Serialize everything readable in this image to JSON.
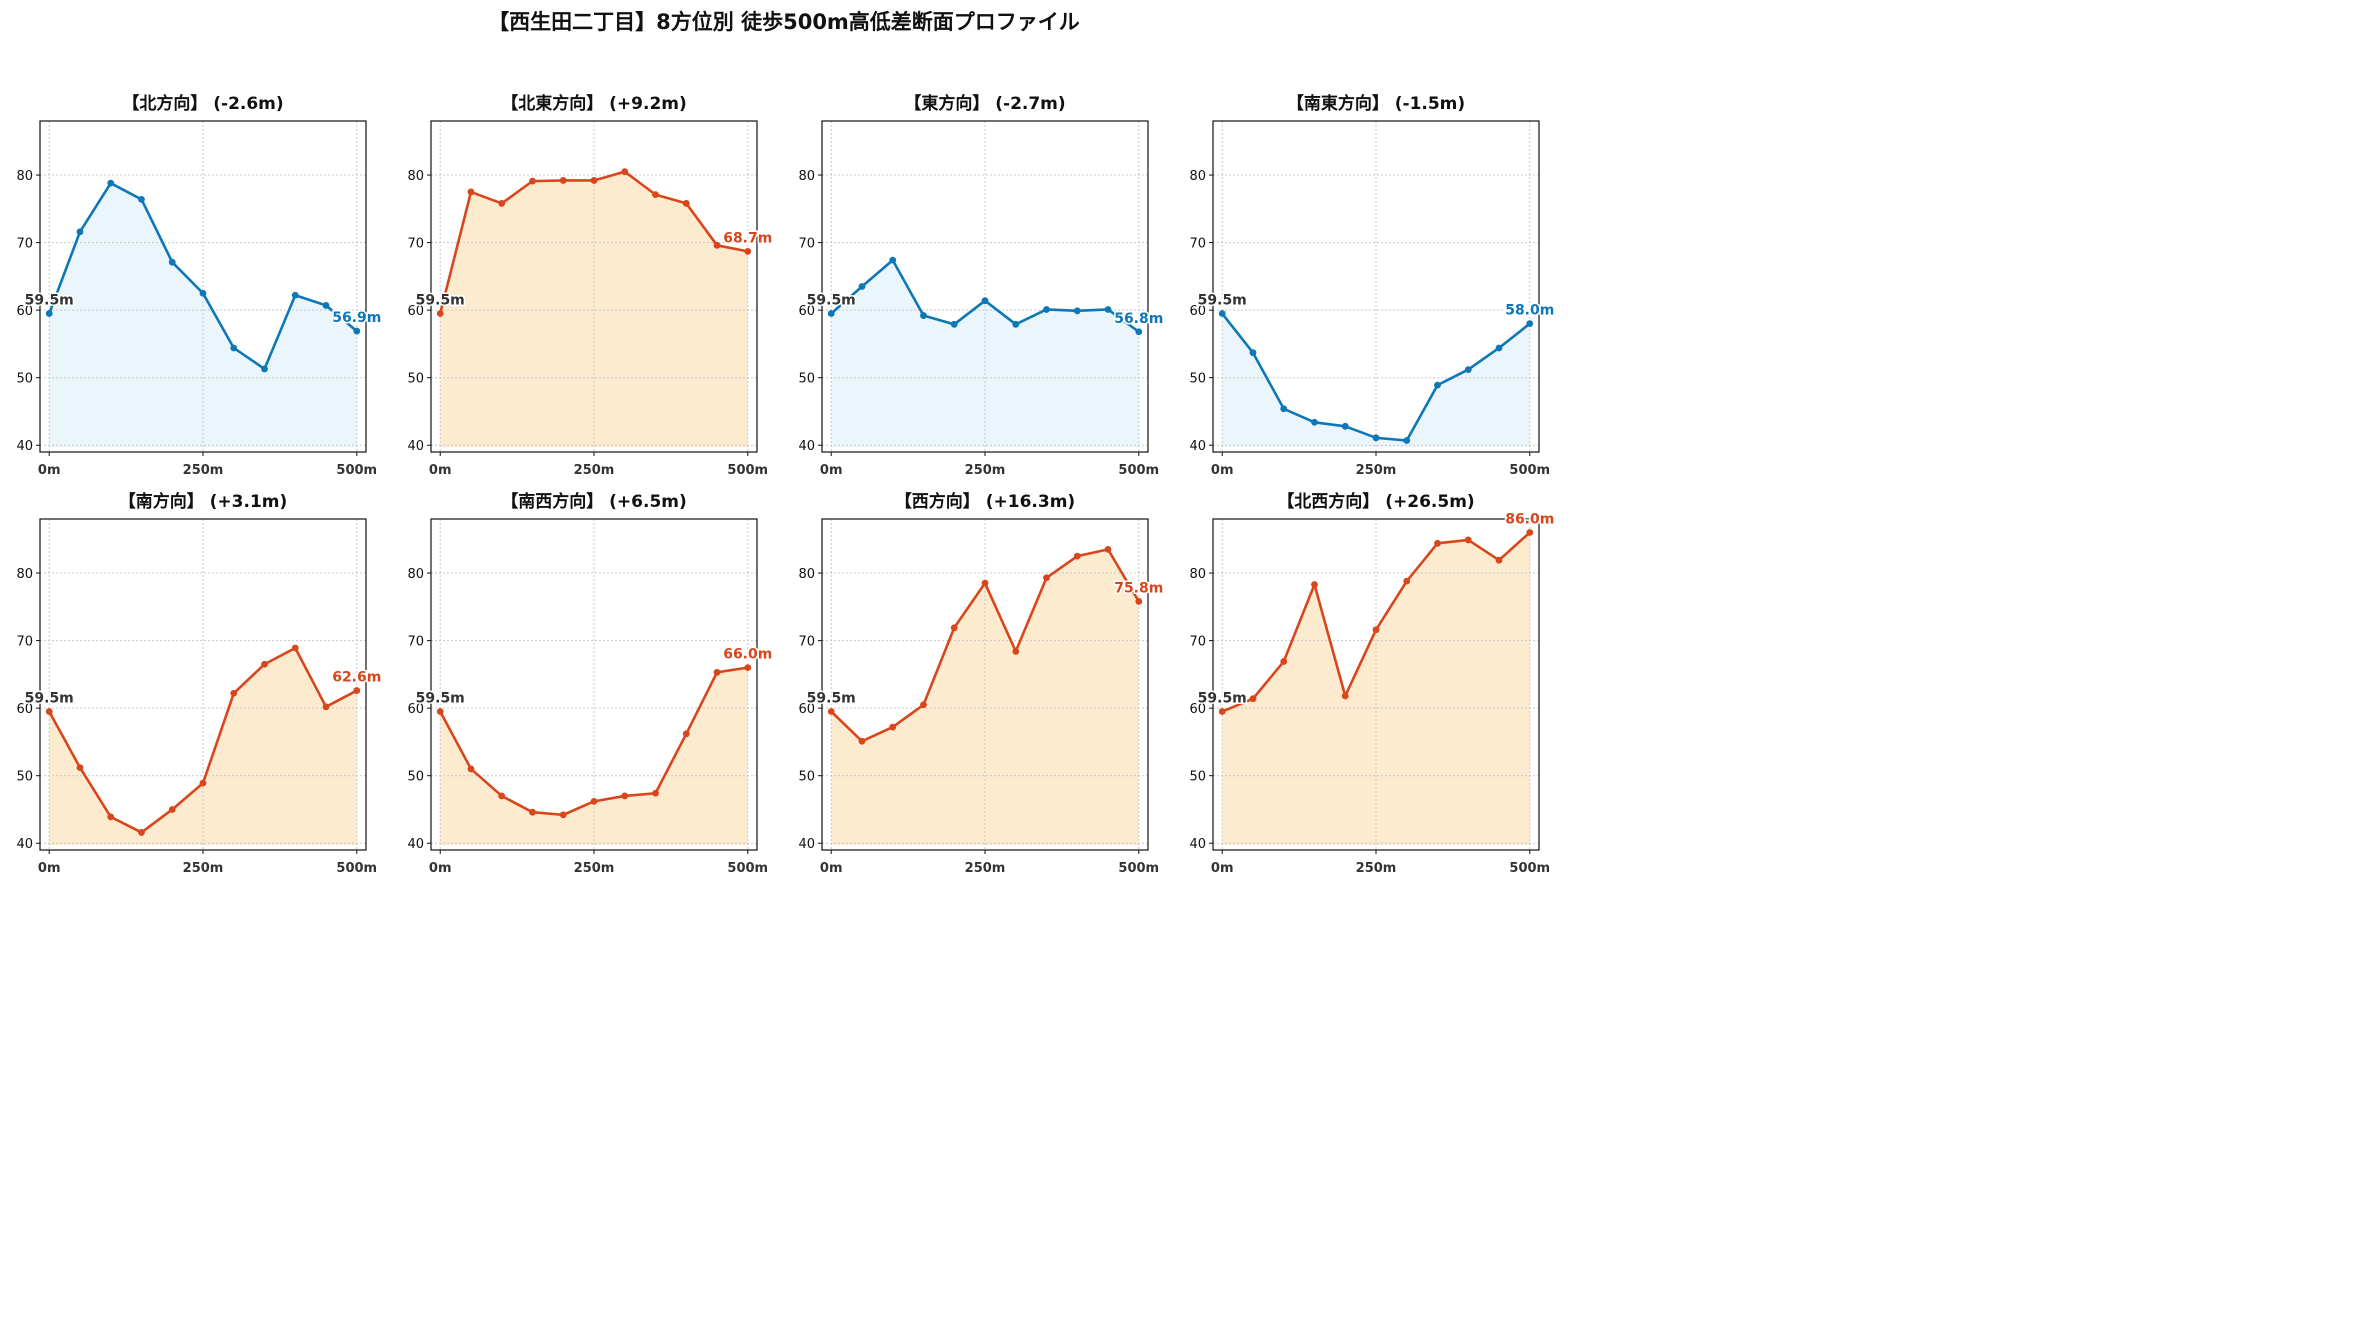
{
  "suptitle": "【西生田二丁目】8方位別 徒歩500m高低差断面プロファイル",
  "colors": {
    "down": "#0e77b7",
    "down_fill": "#eaf6fb",
    "up": "#d9461b",
    "up_fill": "#fdebd0",
    "start_label": "#333333",
    "grid": "#c8c8c8"
  },
  "chart_data": [
    {
      "type": "line",
      "title": "【北方向】 (-2.6m)",
      "trend": "down",
      "x": [
        0,
        50,
        100,
        150,
        200,
        250,
        300,
        350,
        400,
        450,
        500
      ],
      "y": [
        59.5,
        71.6,
        78.8,
        76.4,
        67.1,
        62.5,
        54.4,
        51.3,
        62.2,
        60.7,
        56.9
      ],
      "start_label": "59.5m",
      "end_label": "56.9m",
      "xticks": [
        "0m",
        "250m",
        "500m"
      ],
      "yticks": [
        40,
        50,
        60,
        70,
        80
      ],
      "ylim": [
        39,
        88
      ],
      "xlim": [
        -15,
        515
      ],
      "grid": true
    },
    {
      "type": "line",
      "title": "【北東方向】 (+9.2m)",
      "trend": "up",
      "x": [
        0,
        50,
        100,
        150,
        200,
        250,
        300,
        350,
        400,
        450,
        500
      ],
      "y": [
        59.5,
        77.5,
        75.8,
        79.1,
        79.2,
        79.2,
        80.5,
        77.1,
        75.8,
        69.6,
        68.7
      ],
      "start_label": "59.5m",
      "end_label": "68.7m",
      "xticks": [
        "0m",
        "250m",
        "500m"
      ],
      "yticks": [
        40,
        50,
        60,
        70,
        80
      ],
      "ylim": [
        39,
        88
      ],
      "xlim": [
        -15,
        515
      ],
      "grid": true
    },
    {
      "type": "line",
      "title": "【東方向】 (-2.7m)",
      "trend": "down",
      "x": [
        0,
        50,
        100,
        150,
        200,
        250,
        300,
        350,
        400,
        450,
        500
      ],
      "y": [
        59.5,
        63.5,
        67.4,
        59.2,
        57.9,
        61.4,
        57.9,
        60.1,
        59.9,
        60.1,
        56.8
      ],
      "start_label": "59.5m",
      "end_label": "56.8m",
      "xticks": [
        "0m",
        "250m",
        "500m"
      ],
      "yticks": [
        40,
        50,
        60,
        70,
        80
      ],
      "ylim": [
        39,
        88
      ],
      "xlim": [
        -15,
        515
      ],
      "grid": true
    },
    {
      "type": "line",
      "title": "【南東方向】 (-1.5m)",
      "trend": "down",
      "x": [
        0,
        50,
        100,
        150,
        200,
        250,
        300,
        350,
        400,
        450,
        500
      ],
      "y": [
        59.5,
        53.7,
        45.4,
        43.4,
        42.8,
        41.1,
        40.7,
        48.9,
        51.2,
        54.4,
        58.0
      ],
      "start_label": "59.5m",
      "end_label": "58.0m",
      "xticks": [
        "0m",
        "250m",
        "500m"
      ],
      "yticks": [
        40,
        50,
        60,
        70,
        80
      ],
      "ylim": [
        39,
        88
      ],
      "xlim": [
        -15,
        515
      ],
      "grid": true
    },
    {
      "type": "line",
      "title": "【南方向】 (+3.1m)",
      "trend": "up",
      "x": [
        0,
        50,
        100,
        150,
        200,
        250,
        300,
        350,
        400,
        450,
        500
      ],
      "y": [
        59.5,
        51.2,
        43.9,
        41.6,
        45.0,
        48.9,
        62.2,
        66.5,
        68.9,
        60.2,
        62.6
      ],
      "start_label": "59.5m",
      "end_label": "62.6m",
      "xticks": [
        "0m",
        "250m",
        "500m"
      ],
      "yticks": [
        40,
        50,
        60,
        70,
        80
      ],
      "ylim": [
        39,
        88
      ],
      "xlim": [
        -15,
        515
      ],
      "grid": true
    },
    {
      "type": "line",
      "title": "【南西方向】 (+6.5m)",
      "trend": "up",
      "x": [
        0,
        50,
        100,
        150,
        200,
        250,
        300,
        350,
        400,
        450,
        500
      ],
      "y": [
        59.5,
        51.0,
        47.0,
        44.6,
        44.2,
        46.2,
        47.0,
        47.4,
        56.2,
        65.3,
        66.0
      ],
      "start_label": "59.5m",
      "end_label": "66.0m",
      "xticks": [
        "0m",
        "250m",
        "500m"
      ],
      "yticks": [
        40,
        50,
        60,
        70,
        80
      ],
      "ylim": [
        39,
        88
      ],
      "xlim": [
        -15,
        515
      ],
      "grid": true
    },
    {
      "type": "line",
      "title": "【西方向】 (+16.3m)",
      "trend": "up",
      "x": [
        0,
        50,
        100,
        150,
        200,
        250,
        300,
        350,
        400,
        450,
        500
      ],
      "y": [
        59.5,
        55.1,
        57.2,
        60.5,
        71.9,
        78.5,
        68.4,
        79.3,
        82.5,
        83.5,
        75.8
      ],
      "start_label": "59.5m",
      "end_label": "75.8m",
      "xticks": [
        "0m",
        "250m",
        "500m"
      ],
      "yticks": [
        40,
        50,
        60,
        70,
        80
      ],
      "ylim": [
        39,
        88
      ],
      "xlim": [
        -15,
        515
      ],
      "grid": true
    },
    {
      "type": "line",
      "title": "【北西方向】 (+26.5m)",
      "trend": "up",
      "x": [
        0,
        50,
        100,
        150,
        200,
        250,
        300,
        350,
        400,
        450,
        500
      ],
      "y": [
        59.5,
        61.4,
        66.9,
        78.3,
        61.8,
        71.6,
        78.8,
        84.4,
        84.9,
        81.9,
        86.0
      ],
      "start_label": "59.5m",
      "end_label": "86.0m",
      "xticks": [
        "0m",
        "250m",
        "500m"
      ],
      "yticks": [
        40,
        50,
        60,
        70,
        80
      ],
      "ylim": [
        39,
        88
      ],
      "xlim": [
        -15,
        515
      ],
      "grid": true
    }
  ]
}
